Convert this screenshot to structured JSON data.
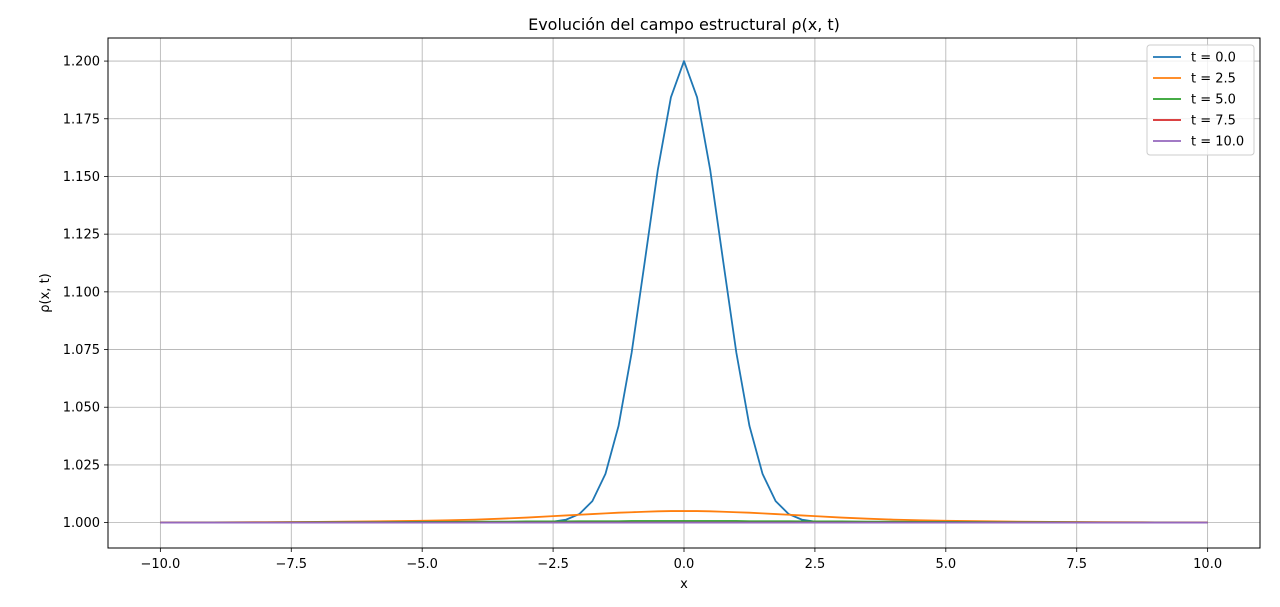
{
  "chart_data": {
    "type": "line",
    "title": "Evolución del campo estructural ρ(x, t)",
    "xlabel": "x",
    "ylabel": "ρ(x, t)",
    "xlim": [
      -11,
      11
    ],
    "ylim": [
      0.989,
      1.21
    ],
    "x_ticks": [
      -10,
      -7.5,
      -5,
      -2.5,
      0,
      2.5,
      5,
      7.5,
      10
    ],
    "x_tick_labels": [
      "−10.0",
      "−7.5",
      "−5.0",
      "−2.5",
      "0.0",
      "2.5",
      "5.0",
      "7.5",
      "10.0"
    ],
    "y_ticks": [
      1.0,
      1.025,
      1.05,
      1.075,
      1.1,
      1.125,
      1.15,
      1.175,
      1.2
    ],
    "y_tick_labels": [
      "1.000",
      "1.025",
      "1.050",
      "1.075",
      "1.100",
      "1.125",
      "1.150",
      "1.175",
      "1.200"
    ],
    "grid": true,
    "legend_position": "top-right",
    "x": [
      -10,
      -9,
      -8,
      -7,
      -6,
      -5,
      -4.5,
      -4,
      -3.5,
      -3,
      -2.5,
      -2.25,
      -2,
      -1.75,
      -1.5,
      -1.25,
      -1,
      -0.75,
      -0.5,
      -0.25,
      0,
      0.25,
      0.5,
      0.75,
      1,
      1.25,
      1.5,
      1.75,
      2,
      2.25,
      2.5,
      3,
      3.5,
      4,
      4.5,
      5,
      6,
      7,
      8,
      9,
      10
    ],
    "series": [
      {
        "name": "t = 0.0",
        "color": "#1f77b4",
        "values": [
          1.0,
          1.0,
          1.0,
          1.0,
          1.0,
          1.0,
          1.0,
          1.0,
          1.0,
          1.0,
          1.0004,
          1.0013,
          1.0037,
          1.0093,
          1.0211,
          1.0419,
          1.0736,
          1.113,
          1.1529,
          1.1843,
          1.2,
          1.1843,
          1.1529,
          1.113,
          1.0736,
          1.0419,
          1.0211,
          1.0093,
          1.0037,
          1.0013,
          1.0004,
          1.0,
          1.0,
          1.0,
          1.0,
          1.0,
          1.0,
          1.0,
          1.0,
          1.0,
          1.0
        ]
      },
      {
        "name": "t = 2.5",
        "color": "#ff7f0e",
        "values": [
          1.0,
          1.0001,
          1.0002,
          1.0003,
          1.0005,
          1.0008,
          1.001,
          1.0013,
          1.0017,
          1.0022,
          1.0028,
          1.0031,
          1.0034,
          1.0037,
          1.004,
          1.0043,
          1.0045,
          1.0047,
          1.0049,
          1.005,
          1.005,
          1.005,
          1.0049,
          1.0047,
          1.0045,
          1.0043,
          1.004,
          1.0037,
          1.0034,
          1.0031,
          1.0028,
          1.0022,
          1.0017,
          1.0013,
          1.001,
          1.0008,
          1.0005,
          1.0003,
          1.0002,
          1.0001,
          1.0
        ]
      },
      {
        "name": "t = 5.0",
        "color": "#2ca02c",
        "values": [
          1.0,
          1.0001,
          1.0001,
          1.0002,
          1.0002,
          1.0003,
          1.0003,
          1.0004,
          1.0004,
          1.0005,
          1.0005,
          1.0005,
          1.0006,
          1.0006,
          1.0006,
          1.0006,
          1.0007,
          1.0007,
          1.0007,
          1.0007,
          1.0007,
          1.0007,
          1.0007,
          1.0007,
          1.0007,
          1.0006,
          1.0006,
          1.0006,
          1.0006,
          1.0005,
          1.0005,
          1.0005,
          1.0004,
          1.0004,
          1.0003,
          1.0003,
          1.0002,
          1.0002,
          1.0001,
          1.0001,
          1.0
        ]
      },
      {
        "name": "t = 7.5",
        "color": "#d62728",
        "values": [
          1.0,
          1.0,
          1.0,
          1.0,
          1.0,
          1.0,
          1.0,
          1.0,
          1.0,
          1.0,
          1.0,
          1.0,
          1.0,
          1.0,
          1.0,
          1.0,
          1.0,
          1.0,
          1.0,
          1.0,
          1.0,
          1.0,
          1.0,
          1.0,
          1.0,
          1.0,
          1.0,
          1.0,
          1.0,
          1.0,
          1.0,
          1.0,
          1.0,
          1.0,
          1.0,
          1.0,
          1.0,
          1.0,
          1.0,
          1.0,
          1.0
        ]
      },
      {
        "name": "t = 10.0",
        "color": "#9467bd",
        "values": [
          1.0,
          1.0,
          1.0,
          1.0,
          1.0,
          1.0,
          1.0,
          1.0,
          1.0,
          1.0,
          1.0,
          1.0,
          1.0,
          1.0,
          1.0,
          1.0,
          1.0,
          1.0,
          1.0,
          1.0,
          1.0,
          1.0,
          1.0,
          1.0,
          1.0,
          1.0,
          1.0,
          1.0,
          1.0,
          1.0,
          1.0,
          1.0,
          1.0,
          1.0,
          1.0,
          1.0,
          1.0,
          1.0,
          1.0,
          1.0,
          1.0
        ]
      }
    ]
  }
}
